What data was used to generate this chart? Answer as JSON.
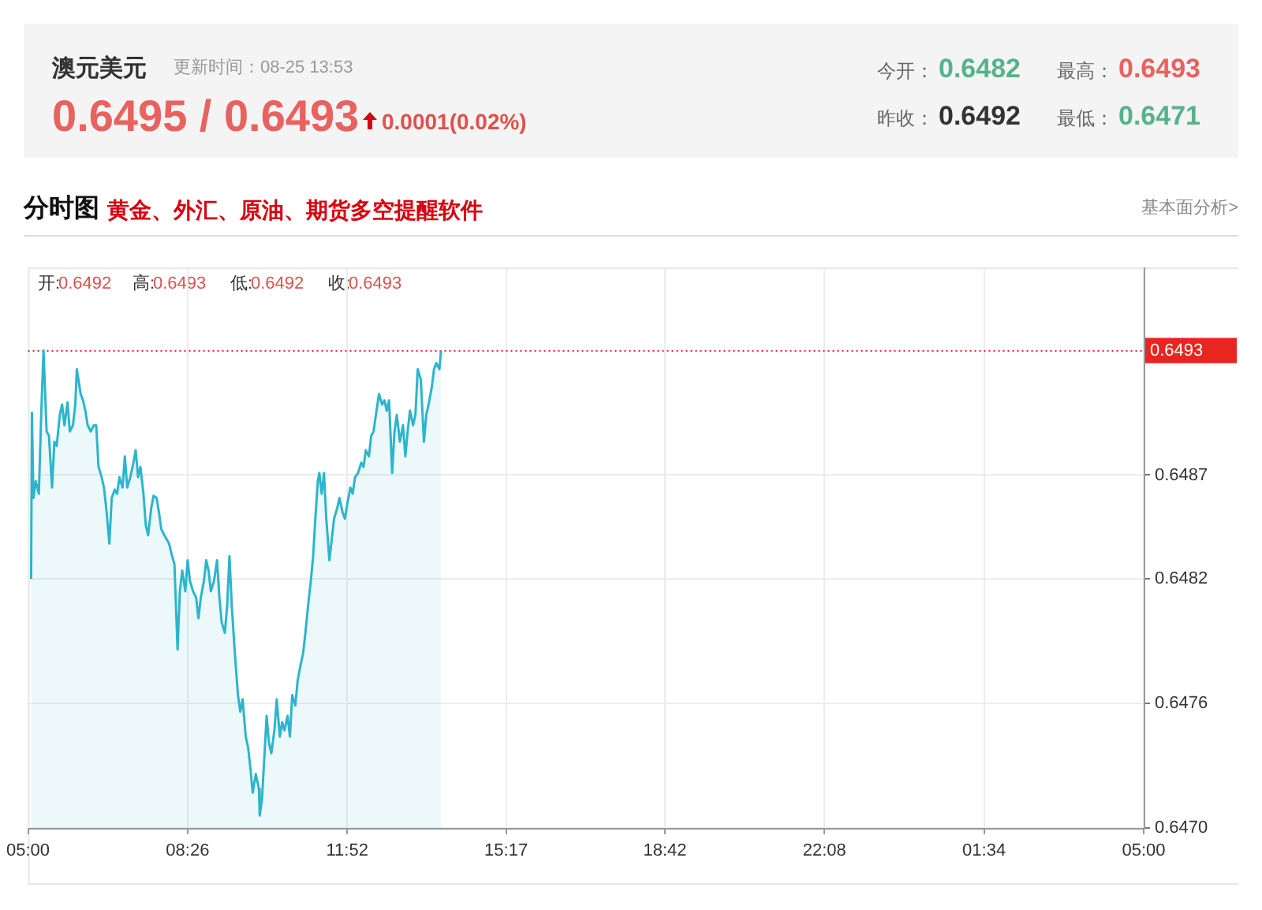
{
  "chart_data": {
    "type": "area",
    "title": "澳元美元",
    "subtitle": "更新时间：08-25 13:53",
    "annotations": [
      "0.6495 / 0.6493",
      "0.0001(0.02%)",
      "今开：",
      "0.6482",
      "最高：",
      "0.6493",
      "昨收：",
      "0.6492",
      "最低：",
      "0.6471",
      "分时图",
      "黄金、外汇、原油、期货多空提醒软件",
      "基本面分析>",
      "开:",
      "0.6492",
      "高:",
      "0.6493",
      "低:",
      "0.6492",
      "收:",
      "0.6493"
    ],
    "x": [
      "--08-25T05:04",
      "--08-25T05:05",
      "--08-25T05:07",
      "--08-25T05:10",
      "--08-25T05:14",
      "--08-25T05:17",
      "--08-25T05:20",
      "--08-25T05:24",
      "--08-25T05:27",
      "--08-25T05:31",
      "--08-25T05:34",
      "--08-25T05:37",
      "--08-25T05:41",
      "--08-25T05:44",
      "--08-25T05:47",
      "--08-25T05:51",
      "--08-25T05:54",
      "--08-25T05:58",
      "--08-25T06:01",
      "--08-25T06:03",
      "--08-25T06:08",
      "--08-25T06:11",
      "--08-25T06:14",
      "--08-25T06:17",
      "--08-25T06:21",
      "--08-25T06:25",
      "--08-25T06:28",
      "--08-25T06:31",
      "--08-25T06:35",
      "--08-25T06:38",
      "--08-25T06:41",
      "--08-25T06:45",
      "--08-25T06:48",
      "--08-25T06:52",
      "--08-25T06:55",
      "--08-25T06:58",
      "--08-25T07:02",
      "--08-25T07:05",
      "--08-25T07:08",
      "--08-25T07:12",
      "--08-25T07:15",
      "--08-25T07:19",
      "--08-25T07:22",
      "--08-25T07:25",
      "--08-25T07:29",
      "--08-25T07:32",
      "--08-25T07:35",
      "--08-25T07:39",
      "--08-25T07:42",
      "--08-25T07:46",
      "--08-25T07:49",
      "--08-25T07:52",
      "--08-25T07:56",
      "--08-25T07:59",
      "--08-25T08:02",
      "--08-25T08:06",
      "--08-25T08:09",
      "--08-25T08:13",
      "--08-25T08:16",
      "--08-25T08:19",
      "--08-25T08:23",
      "--08-25T08:26",
      "--08-25T08:29",
      "--08-25T08:33",
      "--08-25T08:37",
      "--08-25T08:40",
      "--08-25T08:43",
      "--08-25T08:47",
      "--08-25T08:50",
      "--08-25T08:53",
      "--08-25T08:56",
      "--08-25T09:00",
      "--08-25T09:04",
      "--08-25T09:07",
      "--08-25T09:10",
      "--08-25T09:14",
      "--08-25T09:17",
      "--08-25T09:20",
      "--08-25T09:23",
      "--08-25T09:27",
      "--08-25T09:31",
      "--08-25T09:34",
      "--08-25T09:37",
      "--08-25T09:41",
      "--08-25T09:44",
      "--08-25T09:47",
      "--08-25T09:50",
      "--08-25T09:54",
      "--08-25T09:58",
      "--08-25T09:59",
      "--08-25T10:02",
      "--08-25T10:05",
      "--08-25T10:08",
      "--08-25T10:11",
      "--08-25T10:14",
      "--08-25T10:18",
      "--08-25T10:21",
      "--08-25T10:25",
      "--08-25T10:28",
      "--08-25T10:31",
      "--08-25T10:35",
      "--08-25T10:38",
      "--08-25T10:41",
      "--08-25T10:45",
      "--08-25T10:48",
      "--08-25T10:52",
      "--08-25T10:55",
      "--08-25T10:58",
      "--08-25T11:02",
      "--08-25T11:05",
      "--08-25T11:08",
      "--08-25T11:11",
      "--08-25T11:14",
      "--08-25T11:16",
      "--08-25T11:19",
      "--08-25T11:22",
      "--08-25T11:25",
      "--08-25T11:29",
      "--08-25T11:32",
      "--08-25T11:35",
      "--08-25T11:39",
      "--08-25T11:42",
      "--08-25T11:46",
      "--08-25T11:49",
      "--08-25T11:52",
      "--08-25T11:56",
      "--08-25T11:59",
      "--08-25T12:02",
      "--08-25T12:06",
      "--08-25T12:10",
      "--08-25T12:13",
      "--08-25T12:16",
      "--08-25T12:20",
      "--08-25T12:23",
      "--08-25T12:26",
      "--08-25T12:29",
      "--08-25T12:33",
      "--08-25T12:37",
      "--08-25T12:40",
      "--08-25T12:43",
      "--08-25T12:46",
      "--08-25T12:50",
      "--08-25T12:53",
      "--08-25T12:56",
      "--08-25T13:00",
      "--08-25T13:04",
      "--08-25T13:07",
      "--08-25T13:10",
      "--08-25T13:13",
      "--08-25T13:17",
      "--08-25T13:20",
      "--08-25T13:23",
      "--08-25T13:27",
      "--08-25T13:31",
      "--08-25T13:34",
      "--08-25T13:37",
      "--08-25T13:41",
      "--08-25T13:44",
      "--08-25T13:47",
      "--08-25T13:51",
      "--08-25T13:53"
    ],
    "values": [
      0.6482,
      0.649,
      0.64859,
      0.64867,
      0.64861,
      0.64899,
      0.6493,
      0.64891,
      0.64889,
      0.64864,
      0.64886,
      0.64884,
      0.64899,
      0.64904,
      0.64894,
      0.64905,
      0.64891,
      0.64894,
      0.64904,
      0.64921,
      0.64909,
      0.64906,
      0.64901,
      0.64894,
      0.64891,
      0.64894,
      0.64894,
      0.64874,
      0.64869,
      0.64864,
      0.64854,
      0.64837,
      0.64859,
      0.64863,
      0.64861,
      0.64869,
      0.64864,
      0.64879,
      0.64864,
      0.64869,
      0.64874,
      0.64882,
      0.64869,
      0.64874,
      0.64861,
      0.64846,
      0.64841,
      0.64854,
      0.6486,
      0.64859,
      0.64852,
      0.64844,
      0.64841,
      0.64839,
      0.64837,
      0.64831,
      0.64827,
      0.64786,
      0.64814,
      0.64824,
      0.64814,
      0.64829,
      0.64819,
      0.64814,
      0.64811,
      0.64801,
      0.64811,
      0.64819,
      0.64829,
      0.64824,
      0.64814,
      0.64819,
      0.64829,
      0.64811,
      0.64799,
      0.64794,
      0.64807,
      0.64831,
      0.64807,
      0.64784,
      0.64764,
      0.64756,
      0.64762,
      0.64744,
      0.64739,
      0.64729,
      0.64717,
      0.64726,
      0.64719,
      0.64706,
      0.64714,
      0.64734,
      0.64754,
      0.64741,
      0.64736,
      0.64747,
      0.64762,
      0.64744,
      0.64751,
      0.64747,
      0.64754,
      0.64744,
      0.64764,
      0.64759,
      0.64771,
      0.64779,
      0.64784,
      0.64794,
      0.64809,
      0.64819,
      0.64831,
      0.6485,
      0.64867,
      0.64871,
      0.64861,
      0.64871,
      0.64849,
      0.64829,
      0.64839,
      0.64849,
      0.64854,
      0.64859,
      0.64852,
      0.64849,
      0.64856,
      0.64864,
      0.64861,
      0.64869,
      0.64871,
      0.64876,
      0.64874,
      0.64882,
      0.64879,
      0.64889,
      0.64891,
      0.64899,
      0.64909,
      0.64904,
      0.64906,
      0.64901,
      0.64906,
      0.64871,
      0.64891,
      0.64899,
      0.64886,
      0.64894,
      0.64879,
      0.64891,
      0.64901,
      0.64894,
      0.64899,
      0.64921,
      0.64916,
      0.64886,
      0.64899,
      0.64904,
      0.64912,
      0.64921,
      0.64924,
      0.64921,
      0.6493
    ],
    "color": "#2cb5cc",
    "marker": "none",
    "xlim": [
      "--08-25T05:00",
      "--08-26T05:00"
    ],
    "xticks": [
      {
        "value": "--08-25T05:00",
        "label": "05:00"
      },
      {
        "value": "--08-25T08:26",
        "label": "08:26"
      },
      {
        "value": "--08-25T11:52",
        "label": "11:52"
      },
      {
        "value": "--08-25T15:17",
        "label": "15:17"
      },
      {
        "value": "--08-25T18:42",
        "label": "18:42"
      },
      {
        "value": "--08-25T22:08",
        "label": "22:08"
      },
      {
        "value": "--08-26T01:34",
        "label": "01:34"
      },
      {
        "value": "--08-26T05:00",
        "label": "05:00"
      }
    ],
    "ylim": [
      0.647,
      0.6497
    ],
    "yticks": [
      {
        "value": 0.647,
        "label": "0.6470"
      },
      0.6476,
      0.6482,
      0.6487
    ],
    "grid": true,
    "ref_lines": [
      {
        "axis": "y",
        "value": 0.6493,
        "label": "0.6493",
        "color": "#e8261f",
        "line_style": "dotted"
      }
    ]
  }
}
